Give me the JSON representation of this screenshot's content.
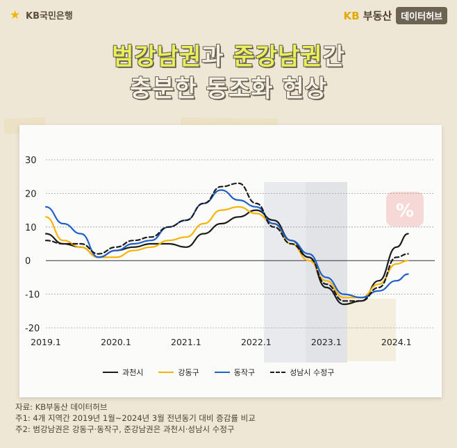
{
  "header": {
    "bank_logo_text": "KB국민은행",
    "brand_kb": "KB",
    "brand_name": "부동산",
    "brand_tag": "데이터허브"
  },
  "title": {
    "line1_part1": "범강남권",
    "line1_part2": "과 ",
    "line1_part3": "준강남권",
    "line1_part4": "간",
    "line2": "충분한 동조화 현상"
  },
  "colors": {
    "gwacheon": "#1a1a1a",
    "gangdong": "#f5b400",
    "dongjak": "#1f5fc8",
    "sujeong": "#1a1a1a",
    "title_highlight": "#e8f15a"
  },
  "chart_data": {
    "type": "line",
    "y_ticks": [
      "30",
      "20",
      "10",
      "0",
      "-10",
      "-20"
    ],
    "x_ticks": [
      "2019.1",
      "2020.1",
      "2021.1",
      "2022.1",
      "2023.1",
      "2024.1"
    ],
    "ylim": [
      -20,
      30
    ],
    "xlim": [
      "2019.1",
      "2024.4"
    ],
    "grid": "dotted horizontal",
    "legend_position": "bottom",
    "x": [
      "2019.1",
      "2019.4",
      "2019.7",
      "2019.10",
      "2020.1",
      "2020.4",
      "2020.7",
      "2020.10",
      "2021.1",
      "2021.4",
      "2021.7",
      "2021.10",
      "2022.1",
      "2022.4",
      "2022.7",
      "2022.10",
      "2023.1",
      "2023.4",
      "2023.7",
      "2023.10",
      "2024.1",
      "2024.3"
    ],
    "series": [
      {
        "name": "과천시",
        "style": "solid",
        "color": "gwacheon",
        "values": [
          8,
          5,
          4,
          1,
          3,
          4,
          5,
          5,
          4,
          8,
          11,
          13,
          15,
          12,
          6,
          1,
          -8,
          -13,
          -12,
          -6,
          4,
          8
        ]
      },
      {
        "name": "강동구",
        "style": "solid",
        "color": "gangdong",
        "values": [
          13,
          6,
          4,
          1,
          1,
          3,
          4,
          6,
          7,
          11,
          15,
          16,
          14,
          11,
          5,
          0,
          -6,
          -11,
          -11,
          -7,
          -1,
          0
        ]
      },
      {
        "name": "동작구",
        "style": "solid",
        "color": "dongjak",
        "values": [
          16,
          11,
          8,
          1,
          3,
          5,
          6,
          10,
          12,
          17,
          21,
          18,
          16,
          11,
          6,
          2,
          -5,
          -10,
          -11,
          -9,
          -6,
          -4
        ]
      },
      {
        "name": "성남시 수정구",
        "style": "dashed",
        "color": "sujeong",
        "values": [
          6,
          5,
          5,
          2,
          4,
          6,
          7,
          10,
          12,
          17,
          22,
          23,
          17,
          10,
          5,
          1,
          -7,
          -12,
          -12,
          -8,
          1,
          2
        ]
      }
    ]
  },
  "notes": {
    "source": "자료: KB부동산 데이터허브",
    "note1": "주1: 4개 지역간 2019년 1월~2024년 3월 전년동기 대비 증감률 비교",
    "note2": "주2: 범강남권은 강동구·동작구, 준강남권은 과천시·성남시 수정구"
  }
}
